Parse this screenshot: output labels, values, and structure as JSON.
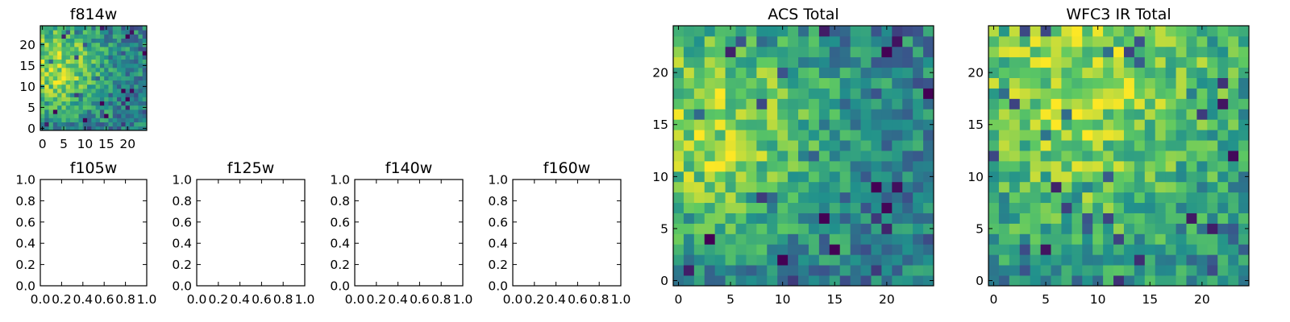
{
  "figure": {
    "background": "#ffffff",
    "colormap": [
      "#440154",
      "#3b528b",
      "#21918c",
      "#5ec962",
      "#fde725"
    ]
  },
  "chart_data": [
    {
      "id": "f814w",
      "type": "heatmap",
      "title": "f814w",
      "grid_size": 25,
      "xticks": [
        0,
        5,
        10,
        15,
        20
      ],
      "yticks": [
        0,
        5,
        10,
        15,
        20
      ],
      "xlim": [
        -0.5,
        24.5
      ],
      "ylim": [
        -0.5,
        24.5
      ],
      "bright_center": [
        3,
        15
      ],
      "bright_spread": 8,
      "seed": 11
    },
    {
      "id": "f105w",
      "type": "scatter",
      "title": "f105w",
      "xticks": [
        "0.0",
        "0.2",
        "0.4",
        "0.6",
        "0.8",
        "1.0"
      ],
      "yticks": [
        "0.0",
        "0.2",
        "0.4",
        "0.6",
        "0.8",
        "1.0"
      ],
      "xlim": [
        0,
        1
      ],
      "ylim": [
        0,
        1
      ],
      "points": []
    },
    {
      "id": "f125w",
      "type": "scatter",
      "title": "f125w",
      "xticks": [
        "0.0",
        "0.2",
        "0.4",
        "0.6",
        "0.8",
        "1.0"
      ],
      "yticks": [
        "0.0",
        "0.2",
        "0.4",
        "0.6",
        "0.8",
        "1.0"
      ],
      "xlim": [
        0,
        1
      ],
      "ylim": [
        0,
        1
      ],
      "points": []
    },
    {
      "id": "f140w",
      "type": "scatter",
      "title": "f140w",
      "xticks": [
        "0.0",
        "0.2",
        "0.4",
        "0.6",
        "0.8",
        "1.0"
      ],
      "yticks": [
        "0.0",
        "0.2",
        "0.4",
        "0.6",
        "0.8",
        "1.0"
      ],
      "xlim": [
        0,
        1
      ],
      "ylim": [
        0,
        1
      ],
      "points": []
    },
    {
      "id": "f160w",
      "type": "scatter",
      "title": "f160w",
      "xticks": [
        "0.0",
        "0.2",
        "0.4",
        "0.6",
        "0.8",
        "1.0"
      ],
      "yticks": [
        "0.0",
        "0.2",
        "0.4",
        "0.6",
        "0.8",
        "1.0"
      ],
      "xlim": [
        0,
        1
      ],
      "ylim": [
        0,
        1
      ],
      "points": []
    },
    {
      "id": "acs-total",
      "type": "heatmap",
      "title": "ACS Total",
      "grid_size": 25,
      "xticks": [
        0,
        5,
        10,
        15,
        20
      ],
      "yticks": [
        0,
        5,
        10,
        15,
        20
      ],
      "xlim": [
        -0.5,
        24.5
      ],
      "ylim": [
        -0.5,
        24.5
      ],
      "bright_center": [
        3,
        15
      ],
      "bright_spread": 8,
      "seed": 11
    },
    {
      "id": "wfc3-ir-total",
      "type": "heatmap",
      "title": "WFC3 IR Total",
      "grid_size": 25,
      "xticks": [
        0,
        5,
        10,
        15,
        20
      ],
      "yticks": [
        0,
        5,
        10,
        15,
        20
      ],
      "xlim": [
        -0.5,
        24.5
      ],
      "ylim": [
        -0.5,
        24.5
      ],
      "bright_center": [
        9,
        19
      ],
      "bright_spread": 12,
      "seed": 47
    }
  ]
}
